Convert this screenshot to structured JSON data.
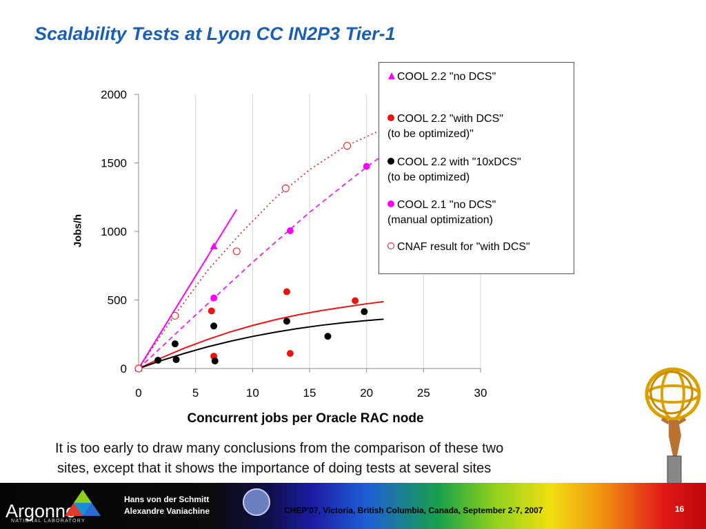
{
  "page": {
    "title": "Scalability Tests at Lyon CC IN2P3 Tier-1",
    "note_line1": "It is too early to draw many conclusions from the comparison of these two",
    "note_line2": "sites, except that it shows the importance of doing tests at several sites"
  },
  "footer": {
    "lab_name": "Argonne",
    "lab_sub": "NATIONAL LABORATORY",
    "author1": "Hans von der Schmitt",
    "author2": "Alexandre Vaniachine",
    "conference": "CHEP'07, Victoria, British Columbia, Canada, September 2-7, 2007",
    "page_number": "16"
  },
  "colors": {
    "title": "#1a5fb4",
    "magenta": "#ff00ff",
    "magenta_dark": "#dd33dd",
    "red": "#ee1111",
    "black": "#000000"
  },
  "chart_data": {
    "type": "scatter",
    "xlabel": "Concurrent jobs per Oracle RAC node",
    "ylabel": "Jobs/h",
    "xlim": [
      0,
      30
    ],
    "ylim": [
      0,
      2000
    ],
    "xticks": [
      0,
      5,
      10,
      15,
      20,
      25,
      30
    ],
    "yticks": [
      0,
      500,
      1000,
      1500,
      2000
    ],
    "grid": "vertical",
    "legend_position": "top-right",
    "series": [
      {
        "name": "COOL 2.2 \"no DCS\"",
        "marker": "triangle",
        "color": "#ff00ff",
        "points": [
          [
            0,
            0
          ],
          [
            6.6,
            890
          ]
        ],
        "trend": {
          "style": "solid",
          "x": [
            0,
            8.6
          ],
          "y": [
            0,
            1160
          ]
        }
      },
      {
        "name": "COOL 2.2 \"with DCS\"\n(to be optimized)\"",
        "marker": "circle",
        "color": "#ee1111",
        "points": [
          [
            0,
            0
          ],
          [
            6.4,
            420
          ],
          [
            6.6,
            90
          ],
          [
            13,
            560
          ],
          [
            13.3,
            110
          ],
          [
            19,
            495
          ]
        ],
        "trend": {
          "style": "solid",
          "x": [
            0,
            2,
            4,
            6,
            8,
            10,
            12,
            14,
            16,
            18,
            20,
            21.5
          ],
          "y": [
            0,
            78,
            148,
            210,
            266,
            314,
            356,
            392,
            422,
            448,
            472,
            488
          ]
        }
      },
      {
        "name": "COOL 2.2 with \"10xDCS\"\n(to be optimized)",
        "marker": "circle",
        "color": "#000000",
        "points": [
          [
            0,
            0
          ],
          [
            1.7,
            60
          ],
          [
            3.2,
            180
          ],
          [
            3.3,
            65
          ],
          [
            6.6,
            310
          ],
          [
            6.7,
            55
          ],
          [
            13,
            345
          ],
          [
            16.6,
            235
          ],
          [
            19.8,
            415
          ]
        ],
        "trend": {
          "style": "solid",
          "x": [
            0,
            2,
            4,
            6,
            8,
            10,
            12,
            14,
            16,
            18,
            20,
            21.5
          ],
          "y": [
            0,
            58,
            110,
            157,
            198,
            234,
            265,
            292,
            315,
            334,
            350,
            360
          ]
        }
      },
      {
        "name": "COOL 2.1 \"no DCS\"\n(manual optimization)",
        "marker": "circle",
        "color": "#ff00ff",
        "points": [
          [
            0,
            0
          ],
          [
            6.6,
            515
          ],
          [
            13.3,
            1005
          ],
          [
            20,
            1475
          ]
        ],
        "trend": {
          "style": "dashed",
          "x": [
            0,
            5,
            10,
            15,
            20,
            22.5
          ],
          "y": [
            0,
            390,
            775,
            1140,
            1470,
            1620
          ]
        }
      },
      {
        "name": "CNAF result for \"with DCS\"",
        "marker": "open-circle",
        "color": "#ee1111",
        "points": [
          [
            0,
            0
          ],
          [
            3.2,
            385
          ],
          [
            8.6,
            855
          ],
          [
            12.9,
            1315
          ],
          [
            18.3,
            1625
          ]
        ],
        "trend": {
          "style": "dotted",
          "x": [
            0,
            3,
            6,
            9,
            12,
            15,
            18,
            21
          ],
          "y": [
            0,
            370,
            710,
            990,
            1245,
            1450,
            1615,
            1730
          ]
        }
      }
    ]
  }
}
